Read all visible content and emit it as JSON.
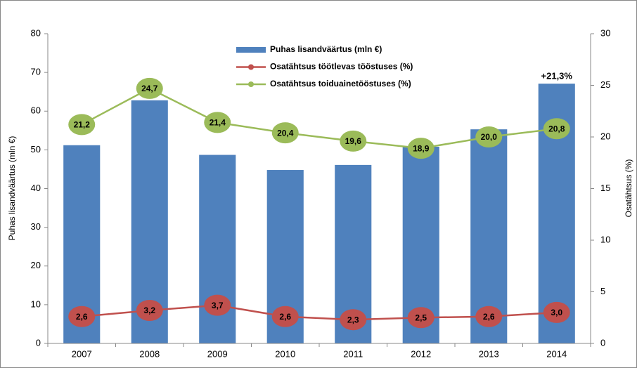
{
  "chart_data": {
    "type": "bar_line",
    "categories": [
      "2007",
      "2008",
      "2009",
      "2010",
      "2011",
      "2012",
      "2013",
      "2014"
    ],
    "ylabel": "Puhas lisandväärtus (mln €)",
    "y2label": "Osatähtsus (%)",
    "annotation": "+21,3%",
    "ylim": [
      0,
      80
    ],
    "yticks": [
      0,
      10,
      20,
      30,
      40,
      50,
      60,
      70,
      80
    ],
    "y2lim": [
      0,
      30
    ],
    "y2ticks": [
      0,
      5,
      10,
      15,
      20,
      25,
      30
    ],
    "series": [
      {
        "name": "Puhas lisandväärtus (mln €)",
        "type": "bar",
        "color": "#4f81bd",
        "values": [
          51.2,
          62.8,
          48.7,
          44.8,
          46.1,
          50.8,
          55.3,
          67.1
        ]
      },
      {
        "name": "Osatähtsus töötlevas tööstuses (%)",
        "type": "line",
        "axis": "y2",
        "color": "#c0504d",
        "values": [
          2.6,
          3.2,
          3.7,
          2.6,
          2.3,
          2.5,
          2.6,
          3.0
        ],
        "value_labels": [
          "2,6",
          "3,2",
          "3,7",
          "2,6",
          "2,3",
          "2,5",
          "2,6",
          "3,0"
        ]
      },
      {
        "name": "Osatähtsus toiduainetööstuses (%)",
        "type": "line",
        "axis": "y2",
        "color": "#9bbb59",
        "values": [
          21.2,
          24.7,
          21.4,
          20.4,
          19.6,
          18.9,
          20.0,
          20.8
        ],
        "value_labels": [
          "21,2",
          "24,7",
          "21,4",
          "20,4",
          "19,6",
          "18,9",
          "20,0",
          "20,8"
        ]
      }
    ]
  }
}
